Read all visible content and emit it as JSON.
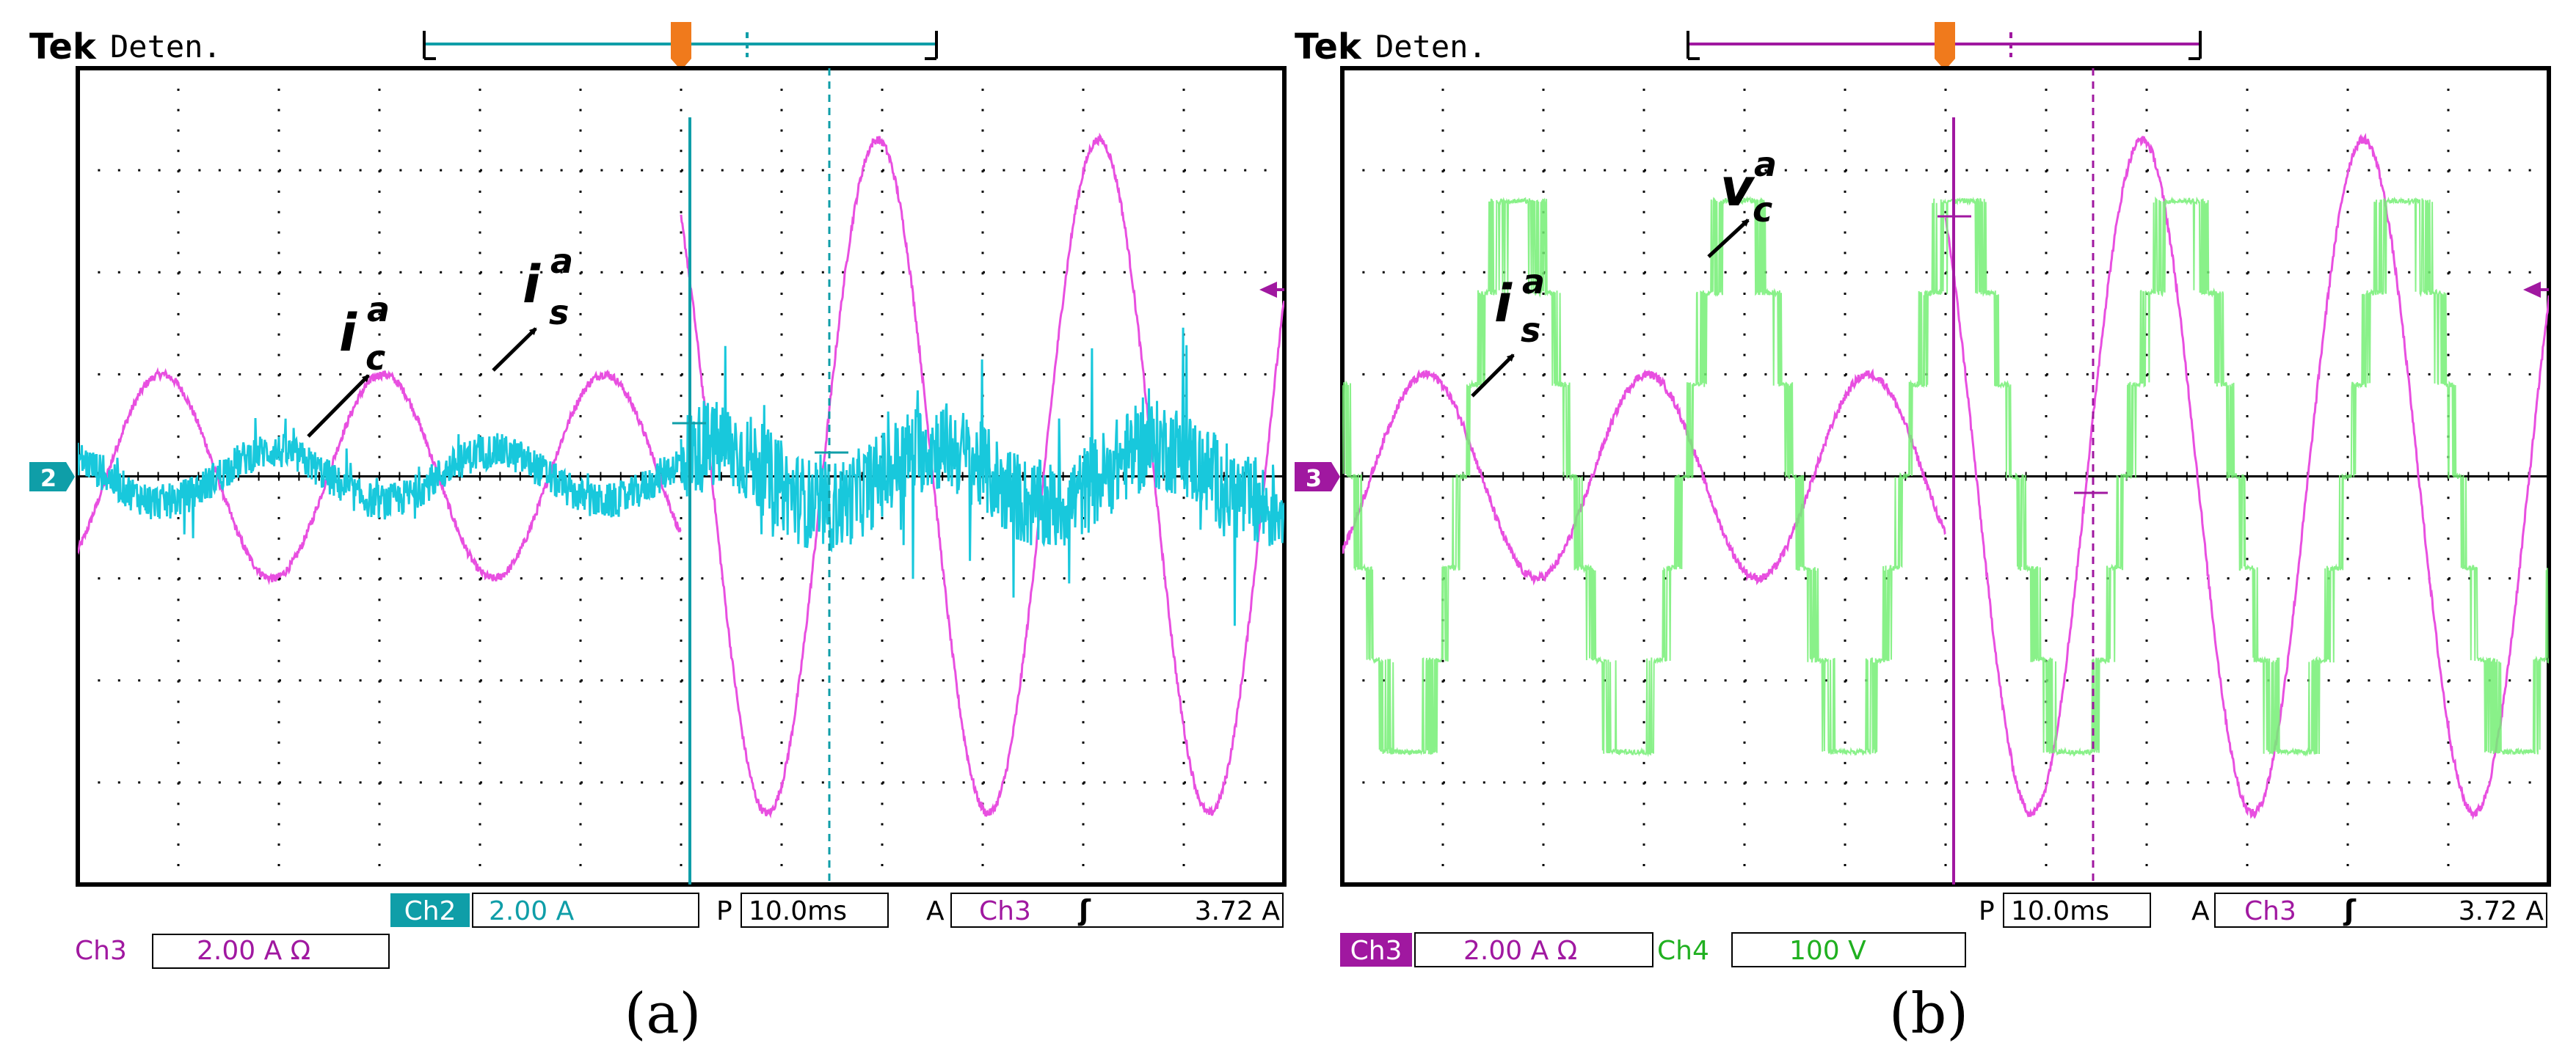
{
  "colors": {
    "ch2": "#18c8dc",
    "ch2_label": "#0f9ea8",
    "ch3": "#e84fe0",
    "ch3_label": "#a018a0",
    "ch4": "#74ee74",
    "ch4_label": "#20b020",
    "trigger": "#f07a1c",
    "grid": "#000000"
  },
  "panels": [
    {
      "brand": "Tek",
      "status": "Deten.",
      "trigger_marker": "T",
      "channel_marker": "2",
      "labels": {
        "primary": "i",
        "primary_sup": "a",
        "primary_sub": "c",
        "secondary": "i",
        "secondary_sup": "a",
        "secondary_sub": "s"
      },
      "footer": {
        "row1": {
          "ch_label": "Ch2",
          "ch_value": "2.00 A",
          "p": "P",
          "time": "10.0ms",
          "a": "A",
          "trig_ch": "Ch3",
          "trig_sym": "ʃ",
          "trig_value": "3.72 A"
        },
        "row2": {
          "ch_label": "Ch3",
          "ch_value": "2.00 A Ω"
        }
      },
      "caption": "(a)"
    },
    {
      "brand": "Tek",
      "status": "Deten.",
      "trigger_marker": "T",
      "channel_marker": "3",
      "labels": {
        "primary": "v",
        "primary_sup": "a",
        "primary_sub": "c",
        "secondary": "i",
        "secondary_sup": "a",
        "secondary_sub": "s"
      },
      "footer": {
        "row1": {
          "p": "P",
          "time": "10.0ms",
          "a": "A",
          "trig_ch": "Ch3",
          "trig_sym": "ʃ",
          "trig_value": "3.72 A"
        },
        "row2": {
          "ch_label": "Ch3",
          "ch_value": "2.00 A Ω",
          "ch4_label": "Ch4",
          "ch4_value": "100 V"
        }
      },
      "caption": "(b)"
    }
  ],
  "chart_data": [
    {
      "type": "line",
      "title": "(a)",
      "x_unit": "ms",
      "time_per_div": 10.0,
      "x_range_ms": [
        -60,
        60
      ],
      "y_divisions": [
        -4,
        4
      ],
      "trigger_time_ms": 0,
      "series": [
        {
          "name": "i_s^a (Ch3, 2.00 A/div)",
          "channel": "Ch3",
          "scale": "2.00 A/div",
          "segments": [
            {
              "t_start_ms": -60,
              "t_end_ms": 0,
              "amplitude_div": 1.0,
              "period_ms": 22,
              "phase_deg": 215
            },
            {
              "t_start_ms": 0,
              "t_end_ms": 60,
              "amplitude_div": 3.3,
              "period_ms": 22,
              "phase_deg": 130
            }
          ]
        },
        {
          "name": "i_c^a (Ch2, 2.00 A)",
          "channel": "Ch2",
          "scale": "2.00 A",
          "segments": [
            {
              "t_start_ms": -60,
              "t_end_ms": 0,
              "amplitude_div": 0.25,
              "period_ms": 22,
              "phase_deg": 35,
              "noise_div": 0.35
            },
            {
              "t_start_ms": 0,
              "t_end_ms": 60,
              "amplitude_div": 0.3,
              "period_ms": 22,
              "phase_deg": 35,
              "noise_div": 0.9
            }
          ]
        }
      ],
      "trigger": {
        "channel": "Ch3",
        "slope": "rising",
        "level": "3.72 A"
      }
    },
    {
      "type": "line",
      "title": "(b)",
      "x_unit": "ms",
      "time_per_div": 10.0,
      "x_range_ms": [
        -60,
        60
      ],
      "y_divisions": [
        -4,
        4
      ],
      "trigger_time_ms": 0,
      "series": [
        {
          "name": "i_s^a (Ch3, 2.00 A/div)",
          "channel": "Ch3",
          "scale": "2.00 A/div",
          "segments": [
            {
              "t_start_ms": -60,
              "t_end_ms": 0,
              "amplitude_div": 1.0,
              "period_ms": 22,
              "phase_deg": 215
            },
            {
              "t_start_ms": 0,
              "t_end_ms": 60,
              "amplitude_div": 3.3,
              "period_ms": 22,
              "phase_deg": 130
            }
          ]
        },
        {
          "name": "v_c^a (Ch4, 100 V)",
          "channel": "Ch4",
          "scale": "100 V",
          "kind": "multilevel-pwm",
          "levels_div": [
            -2.7,
            -1.8,
            -0.9,
            0,
            0.9,
            1.8,
            2.7
          ],
          "fundamental_div": 2.8,
          "period_ms": 22
        }
      ],
      "trigger": {
        "channel": "Ch3",
        "slope": "rising",
        "level": "3.72 A"
      }
    }
  ]
}
